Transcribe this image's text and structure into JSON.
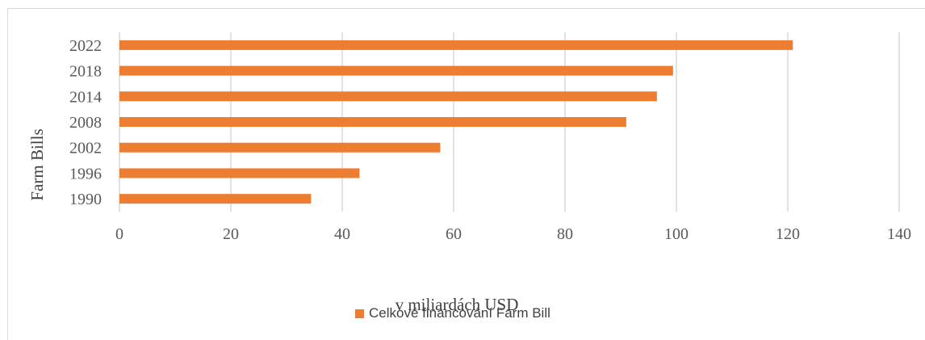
{
  "chart_data": {
    "type": "bar",
    "orientation": "horizontal",
    "categories": [
      "1990",
      "1996",
      "2002",
      "2008",
      "2014",
      "2018",
      "2022"
    ],
    "series": [
      {
        "name": "Celkové financování Farm Bill",
        "values": [
          34.4,
          43.1,
          57.6,
          91.0,
          96.5,
          99.4,
          120.9
        ],
        "color": "#ed7d31"
      }
    ],
    "xlabel": "v miliardách USD",
    "ylabel": "Farm Bills",
    "xlim": [
      0,
      140
    ],
    "xticks": [
      "0",
      "20",
      "40",
      "60",
      "80",
      "100",
      "120",
      "140"
    ],
    "grid": true,
    "legend_position": "bottom"
  }
}
